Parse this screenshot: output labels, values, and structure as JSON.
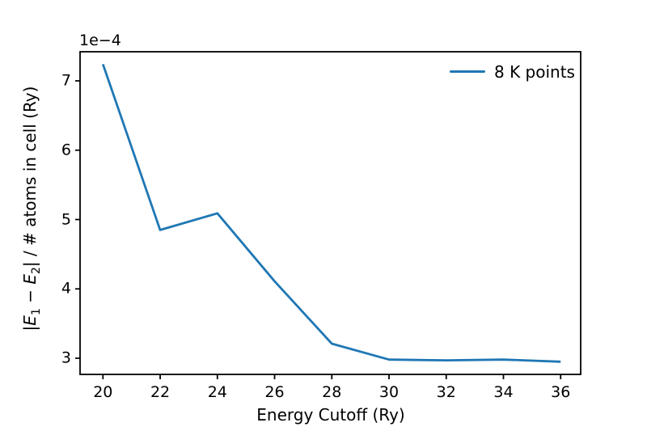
{
  "figure": {
    "background": "#ffffff",
    "offset_text": "1e−4",
    "spine_color": "#000000",
    "text_color": "#000000"
  },
  "chart_data": {
    "type": "line",
    "title": "",
    "xlabel": "Energy Cutoff (Ry)",
    "ylabel": "|E₁ − E₂| / # atoms in cell (Ry)",
    "ylabel_parts": [
      {
        "t": "|"
      },
      {
        "t": "E",
        "style": "italic"
      },
      {
        "t": "1",
        "style": "sub"
      },
      {
        "t": " − "
      },
      {
        "t": "E",
        "style": "italic"
      },
      {
        "t": "2",
        "style": "sub"
      },
      {
        "t": "| / # atoms in cell (Ry)"
      }
    ],
    "y_offset_factor": "1e−4",
    "x": [
      20,
      22,
      24,
      26,
      28,
      30,
      32,
      34,
      36
    ],
    "series": [
      {
        "name": "8 K points",
        "values": [
          7.24,
          4.85,
          5.09,
          4.11,
          3.21,
          2.98,
          2.97,
          2.98,
          2.95
        ],
        "color": "#1f77b4",
        "linewidth": 2.8
      }
    ],
    "x_ticks": [
      20,
      22,
      24,
      26,
      28,
      30,
      32,
      34,
      36
    ],
    "y_ticks": [
      3,
      4,
      5,
      6,
      7
    ],
    "xlim": [
      19.2,
      36.7
    ],
    "ylim": [
      2.767,
      7.42
    ],
    "grid": false,
    "legend": {
      "position": "upper right",
      "entries": [
        "8 K points"
      ]
    }
  }
}
